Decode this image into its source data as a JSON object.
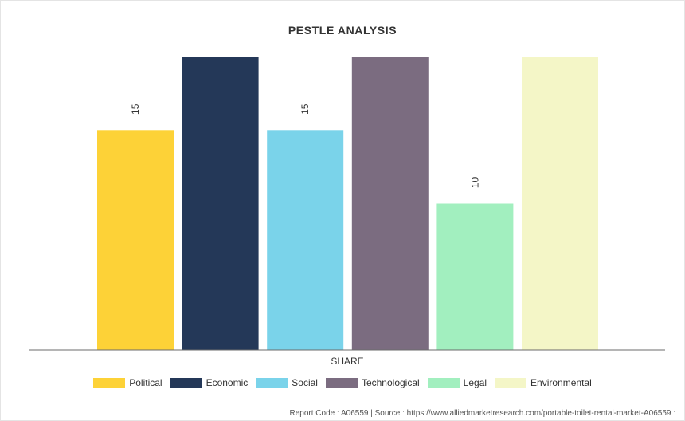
{
  "chart_data": {
    "type": "bar",
    "title": "PESTLE ANALYSIS",
    "xlabel": "SHARE",
    "ylabel": "",
    "ylim": [
      0,
      20
    ],
    "categories": [
      "SHARE"
    ],
    "series": [
      {
        "name": "Political",
        "values": [
          15
        ],
        "color": "#FDD237",
        "label": "15"
      },
      {
        "name": "Economic",
        "values": [
          20
        ],
        "color": "#243858",
        "label": ""
      },
      {
        "name": "Social",
        "values": [
          15
        ],
        "color": "#7AD3EA",
        "label": "15"
      },
      {
        "name": "Technological",
        "values": [
          20
        ],
        "color": "#7B6C80",
        "label": ""
      },
      {
        "name": "Legal",
        "values": [
          10
        ],
        "color": "#A2EFBF",
        "label": "10"
      },
      {
        "name": "Environmental",
        "values": [
          20
        ],
        "color": "#F4F6C7",
        "label": ""
      }
    ],
    "grid": false,
    "legend": "bottom"
  },
  "footer": {
    "source": "Report Code : A06559  |  Source : https://www.alliedmarketresearch.com/portable-toilet-rental-market-A06559 :"
  }
}
